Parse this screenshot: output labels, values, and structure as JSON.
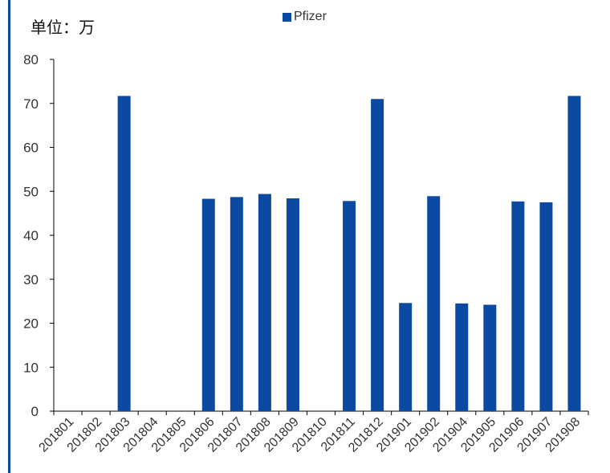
{
  "chart_data": {
    "type": "bar",
    "unit_label": "单位：万",
    "categories": [
      "201801",
      "201802",
      "201803",
      "201804",
      "201805",
      "201806",
      "201807",
      "201808",
      "201809",
      "201810",
      "201811",
      "201812",
      "201901",
      "201902",
      "201904",
      "201905",
      "201906",
      "201907",
      "201908"
    ],
    "series": [
      {
        "name": "Pfizer",
        "color": "#0b4aa0",
        "values": [
          0,
          0,
          71.7,
          0,
          0,
          48.3,
          48.7,
          49.4,
          48.4,
          0,
          47.8,
          71.0,
          24.6,
          48.9,
          24.5,
          24.2,
          47.7,
          47.5,
          71.7
        ]
      }
    ],
    "ylim": [
      0,
      80
    ],
    "yticks": [
      0,
      10,
      20,
      30,
      40,
      50,
      60,
      70,
      80
    ],
    "grid": false,
    "legend": "top-center"
  }
}
